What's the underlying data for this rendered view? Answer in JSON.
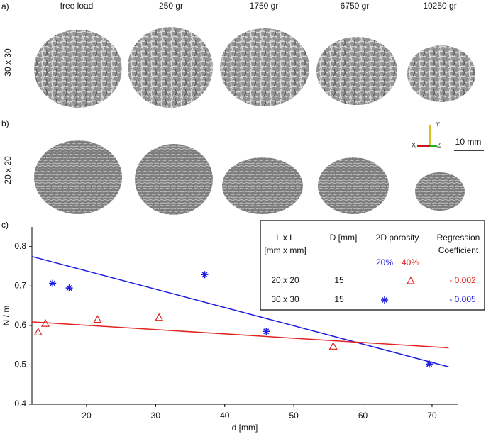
{
  "panels": [
    "a)",
    "b)",
    "c)"
  ],
  "columns": [
    "free load",
    "250 gr",
    "1750 gr",
    "6750 gr",
    "10250 gr"
  ],
  "rows": [
    "30 x 30",
    "20 x 20"
  ],
  "triad": [
    "Y",
    "X",
    "Z"
  ],
  "scale_bar": "10 mm",
  "chart_data": {
    "type": "scatter",
    "xlabel": "d [mm]",
    "ylabel": "N / m",
    "xlim": [
      12.1,
      73.7
    ],
    "ylim": [
      0.4,
      0.85
    ],
    "xticks": [
      20,
      30,
      40,
      50,
      60,
      70
    ],
    "yticks": [
      0.4,
      0.5,
      0.6,
      0.7,
      0.8
    ],
    "series": [
      {
        "marker": "star",
        "color": "#1c1ce0",
        "x": [
          15.1,
          17.5,
          37.1,
          46.0,
          69.6
        ],
        "values": [
          0.707,
          0.695,
          0.729,
          0.585,
          0.502
        ],
        "fit": {
          "x": [
            12.1,
            72.4
          ],
          "y": [
            0.775,
            0.495
          ]
        }
      },
      {
        "marker": "triangle",
        "color": "#e0231f",
        "x": [
          13.0,
          14.05,
          21.6,
          30.5,
          55.7
        ],
        "values": [
          0.583,
          0.605,
          0.615,
          0.62,
          0.547
        ],
        "fit": {
          "x": [
            12.1,
            72.4
          ],
          "y": [
            0.609,
            0.543
          ]
        }
      }
    ],
    "legend_table": {
      "header": [
        [
          "L x L",
          "[mm x mm]"
        ],
        [
          "D [mm]"
        ],
        [
          "2D porosity"
        ],
        [
          "Regression",
          "Coefficient"
        ]
      ],
      "porosity": [
        "20%",
        "40%"
      ],
      "rows": [
        [
          "20 x 20",
          "15",
          "- 0.002"
        ],
        [
          "30 x 30",
          "15",
          "- 0.005"
        ]
      ]
    }
  }
}
